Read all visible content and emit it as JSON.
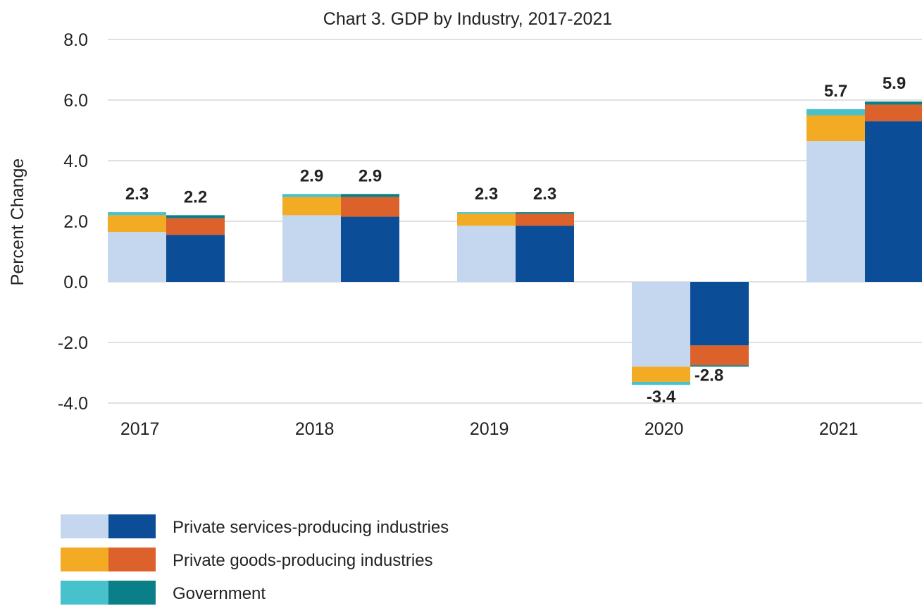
{
  "chart_data": {
    "type": "bar",
    "stacked": true,
    "title": "Chart 3. GDP by Industry, 2017-2021",
    "xlabel": "",
    "ylabel": "Percent Change",
    "ylim": [
      -4.0,
      8.0
    ],
    "yticks": [
      "8.0",
      "6.0",
      "4.0",
      "2.0",
      "0.0",
      "-2.0",
      "-4.0"
    ],
    "ytick_values": [
      8,
      6,
      4,
      2,
      0,
      -2,
      -4
    ],
    "grid": true,
    "legend_position": "bottom-left",
    "categories": [
      "2017",
      "2018",
      "2019",
      "2020",
      "2021"
    ],
    "bars_per_category": 2,
    "bar_groups": [
      {
        "colors": [
          "#c5d7ee",
          "#f2ab23",
          "#47c1cb"
        ],
        "totals": [
          "2.3",
          "2.9",
          "2.3",
          "-3.4",
          "5.7"
        ],
        "values": [
          {
            "Private services-producing industries": 1.65,
            "Private goods-producing industries": 0.55,
            "Government": 0.1
          },
          {
            "Private services-producing industries": 2.2,
            "Private goods-producing industries": 0.6,
            "Government": 0.1
          },
          {
            "Private services-producing industries": 1.85,
            "Private goods-producing industries": 0.4,
            "Government": 0.05
          },
          {
            "Private services-producing industries": -2.8,
            "Private goods-producing industries": -0.5,
            "Government": -0.1
          },
          {
            "Private services-producing industries": 4.65,
            "Private goods-producing industries": 0.85,
            "Government": 0.2
          }
        ]
      },
      {
        "colors": [
          "#0b4d96",
          "#dc612b",
          "#0b7f87"
        ],
        "totals": [
          "2.2",
          "2.9",
          "2.3",
          "-2.8",
          "5.9"
        ],
        "values": [
          {
            "Private services-producing industries": 1.55,
            "Private goods-producing industries": 0.55,
            "Government": 0.1
          },
          {
            "Private services-producing industries": 2.15,
            "Private goods-producing industries": 0.65,
            "Government": 0.1
          },
          {
            "Private services-producing industries": 1.85,
            "Private goods-producing industries": 0.4,
            "Government": 0.05
          },
          {
            "Private services-producing industries": -2.1,
            "Private goods-producing industries": -0.65,
            "Government": -0.05
          },
          {
            "Private services-producing industries": 5.3,
            "Private goods-producing industries": 0.55,
            "Government": 0.1
          }
        ]
      }
    ],
    "series": [
      {
        "name": "Private services-producing industries"
      },
      {
        "name": "Private goods-producing industries"
      },
      {
        "name": "Government"
      }
    ]
  }
}
